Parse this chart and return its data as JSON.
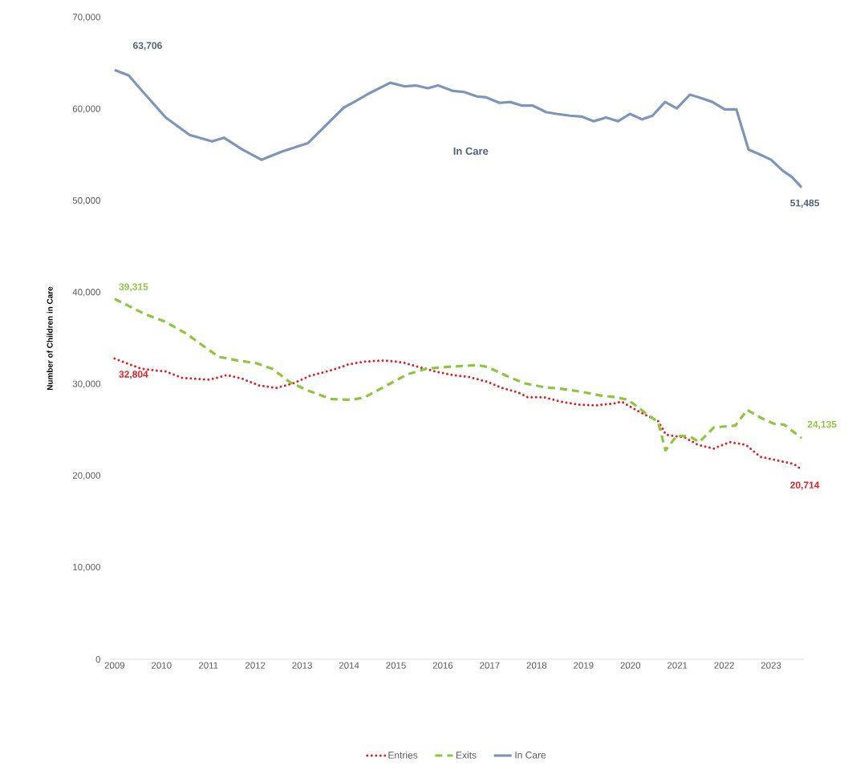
{
  "chart_data": {
    "type": "line",
    "ylabel": "Number of Children in Care",
    "xlim": [
      2008.9,
      2023.7
    ],
    "ylim": [
      0,
      70000
    ],
    "xticks": [
      2009,
      2010,
      2011,
      2012,
      2013,
      2014,
      2015,
      2016,
      2017,
      2018,
      2019,
      2020,
      2021,
      2022,
      2023
    ],
    "yticks": [
      0,
      {
        "value": 10000,
        "label": "10,000"
      },
      {
        "value": 20000,
        "label": "20,000"
      },
      {
        "value": 30000,
        "label": "30,000"
      },
      {
        "value": 40000,
        "label": "40,000"
      },
      {
        "value": 50000,
        "label": "50,000"
      },
      {
        "value": 60000,
        "label": "60,000"
      },
      {
        "value": 70000,
        "label": "70,000"
      }
    ],
    "grid": false,
    "legend": "bottom",
    "marker": "none",
    "annotations": [
      "In Care"
    ],
    "series": [
      {
        "name": "Entries",
        "color": "#e31e24",
        "line_style": "dotted",
        "x": [
          2009.0,
          2009.57,
          2010.09,
          2010.45,
          2011.02,
          2011.39,
          2011.73,
          2012.07,
          2012.44,
          2012.81,
          2013.15,
          2013.66,
          2014.0,
          2014.37,
          2014.77,
          2015.14,
          2015.48,
          2015.85,
          2016.22,
          2016.56,
          2016.93,
          2017.27,
          2017.61,
          2017.81,
          2018.15,
          2018.52,
          2018.88,
          2019.25,
          2019.62,
          2019.82,
          2020.19,
          2020.59,
          2020.76,
          2021.16,
          2021.44,
          2021.78,
          2022.12,
          2022.46,
          2022.77,
          2023.14,
          2023.49,
          2023.65
        ],
        "values": [
          32804,
          31700,
          31400,
          30700,
          30500,
          31000,
          30600,
          29900,
          29600,
          30100,
          30900,
          31600,
          32200,
          32500,
          32600,
          32400,
          31900,
          31400,
          31000,
          30800,
          30300,
          29600,
          29100,
          28600,
          28600,
          28100,
          27800,
          27700,
          27900,
          28100,
          27000,
          26000,
          24500,
          24200,
          23400,
          23000,
          23700,
          23400,
          22100,
          21700,
          21300,
          20714
        ],
        "value_labels": [
          "32,804",
          null,
          null,
          null,
          null,
          null,
          null,
          null,
          null,
          null,
          null,
          null,
          null,
          null,
          null,
          null,
          null,
          null,
          null,
          null,
          null,
          null,
          null,
          null,
          null,
          null,
          null,
          null,
          null,
          null,
          null,
          null,
          null,
          null,
          null,
          null,
          null,
          null,
          null,
          null,
          null,
          "20,714"
        ]
      },
      {
        "name": "Exits",
        "color": "#8cc63f",
        "line_style": "dashed",
        "x": [
          2009.0,
          2009.63,
          2010.09,
          2010.54,
          2010.94,
          2011.22,
          2011.62,
          2012.02,
          2012.36,
          2012.75,
          2013.09,
          2013.6,
          2014.06,
          2014.34,
          2014.74,
          2015.25,
          2015.65,
          2016.1,
          2016.73,
          2016.95,
          2017.41,
          2017.75,
          2018.15,
          2018.54,
          2018.94,
          2019.34,
          2019.68,
          2019.96,
          2020.36,
          2020.59,
          2020.75,
          2020.99,
          2021.27,
          2021.47,
          2021.78,
          2022.24,
          2022.49,
          2022.8,
          2023.06,
          2023.28,
          2023.65
        ],
        "values": [
          39315,
          37700,
          36800,
          35500,
          34000,
          33000,
          32600,
          32300,
          31700,
          30200,
          29400,
          28400,
          28300,
          28600,
          29700,
          31100,
          31700,
          31900,
          32100,
          31900,
          30800,
          30100,
          29700,
          29500,
          29200,
          28800,
          28600,
          28300,
          26700,
          25900,
          22800,
          24400,
          24300,
          23700,
          25300,
          25500,
          27200,
          26300,
          25700,
          25600,
          24135
        ],
        "value_labels": [
          "39,315",
          null,
          null,
          null,
          null,
          null,
          null,
          null,
          null,
          null,
          null,
          null,
          null,
          null,
          null,
          null,
          null,
          null,
          null,
          null,
          null,
          null,
          null,
          null,
          null,
          null,
          null,
          null,
          null,
          null,
          null,
          null,
          null,
          null,
          null,
          null,
          null,
          null,
          null,
          null,
          "24,135"
        ]
      },
      {
        "name": "In Care",
        "color": "#7d95b9",
        "line_style": "solid",
        "x": [
          2009.0,
          2009.3,
          2009.57,
          2010.09,
          2010.6,
          2011.08,
          2011.33,
          2011.73,
          2012.13,
          2012.58,
          2013.12,
          2013.89,
          2014.11,
          2014.45,
          2014.88,
          2015.19,
          2015.42,
          2015.68,
          2015.9,
          2016.22,
          2016.44,
          2016.73,
          2016.93,
          2017.21,
          2017.44,
          2017.69,
          2017.92,
          2018.2,
          2018.43,
          2018.71,
          2018.97,
          2019.22,
          2019.48,
          2019.74,
          2019.99,
          2020.25,
          2020.47,
          2020.74,
          2020.99,
          2021.27,
          2021.52,
          2021.75,
          2022.01,
          2022.26,
          2022.52,
          2022.75,
          2023.0,
          2023.25,
          2023.45,
          2023.65
        ],
        "values": [
          64300,
          63706,
          62100,
          59100,
          57200,
          56500,
          56900,
          55600,
          54500,
          55400,
          56300,
          60200,
          60800,
          61800,
          62900,
          62500,
          62600,
          62300,
          62600,
          62000,
          61900,
          61400,
          61300,
          60700,
          60800,
          60400,
          60400,
          59700,
          59500,
          59300,
          59200,
          58700,
          59100,
          58700,
          59500,
          58900,
          59300,
          60800,
          60100,
          61600,
          61200,
          60800,
          60000,
          60000,
          55600,
          55100,
          54500,
          53300,
          52600,
          51485
        ],
        "value_labels": [
          null,
          "63,706",
          null,
          null,
          null,
          null,
          null,
          null,
          null,
          null,
          null,
          null,
          null,
          null,
          null,
          null,
          null,
          null,
          null,
          null,
          null,
          null,
          null,
          null,
          null,
          null,
          null,
          null,
          null,
          null,
          null,
          null,
          null,
          null,
          null,
          null,
          null,
          null,
          null,
          null,
          null,
          null,
          null,
          null,
          null,
          null,
          null,
          null,
          null,
          "51,485"
        ]
      }
    ]
  }
}
